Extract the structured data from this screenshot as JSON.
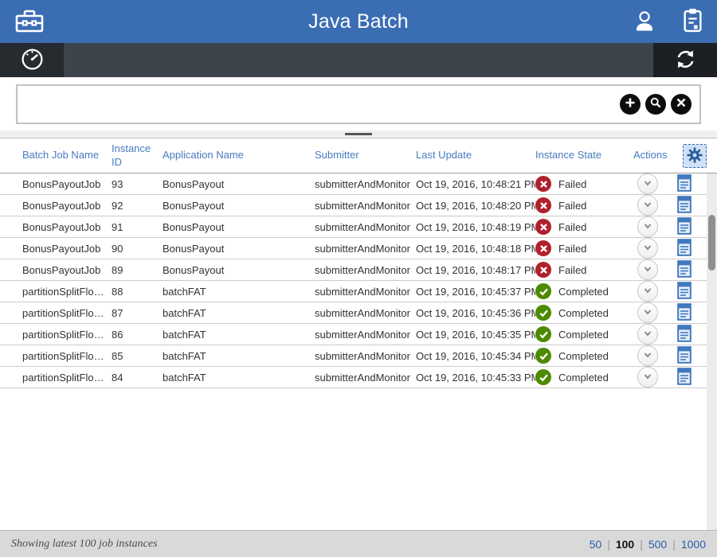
{
  "header": {
    "title": "Java Batch",
    "icons": {
      "left": "toolbox",
      "right": [
        "user",
        "clipboard-tasks"
      ]
    }
  },
  "toolbar": {
    "icons": {
      "left": "dashboard-gauge",
      "right": "refresh"
    }
  },
  "search": {
    "value": "",
    "placeholder": "",
    "buttons": {
      "add": "plus",
      "search": "magnifier",
      "clear": "x"
    }
  },
  "table": {
    "columns": [
      "Batch Job Name",
      "Instance ID",
      "Application Name",
      "Submitter",
      "Last Update",
      "Instance State",
      "Actions"
    ],
    "settings_icon": "gear",
    "rows": [
      {
        "name": "BonusPayoutJob",
        "id": "93",
        "app": "BonusPayout",
        "submitter": "submitterAndMonitor",
        "last_update": "Oct 19, 2016, 10:48:21 PM",
        "state": "Failed"
      },
      {
        "name": "BonusPayoutJob",
        "id": "92",
        "app": "BonusPayout",
        "submitter": "submitterAndMonitor",
        "last_update": "Oct 19, 2016, 10:48:20 PM",
        "state": "Failed"
      },
      {
        "name": "BonusPayoutJob",
        "id": "91",
        "app": "BonusPayout",
        "submitter": "submitterAndMonitor",
        "last_update": "Oct 19, 2016, 10:48:19 PM",
        "state": "Failed"
      },
      {
        "name": "BonusPayoutJob",
        "id": "90",
        "app": "BonusPayout",
        "submitter": "submitterAndMonitor",
        "last_update": "Oct 19, 2016, 10:48:18 PM",
        "state": "Failed"
      },
      {
        "name": "BonusPayoutJob",
        "id": "89",
        "app": "BonusPayout",
        "submitter": "submitterAndMonitor",
        "last_update": "Oct 19, 2016, 10:48:17 PM",
        "state": "Failed"
      },
      {
        "name": "partitionSplitFlo…",
        "id": "88",
        "app": "batchFAT",
        "submitter": "submitterAndMonitor",
        "last_update": "Oct 19, 2016, 10:45:37 PM",
        "state": "Completed"
      },
      {
        "name": "partitionSplitFlo…",
        "id": "87",
        "app": "batchFAT",
        "submitter": "submitterAndMonitor",
        "last_update": "Oct 19, 2016, 10:45:36 PM",
        "state": "Completed"
      },
      {
        "name": "partitionSplitFlo…",
        "id": "86",
        "app": "batchFAT",
        "submitter": "submitterAndMonitor",
        "last_update": "Oct 19, 2016, 10:45:35 PM",
        "state": "Completed"
      },
      {
        "name": "partitionSplitFlo…",
        "id": "85",
        "app": "batchFAT",
        "submitter": "submitterAndMonitor",
        "last_update": "Oct 19, 2016, 10:45:34 PM",
        "state": "Completed"
      },
      {
        "name": "partitionSplitFlo…",
        "id": "84",
        "app": "batchFAT",
        "submitter": "submitterAndMonitor",
        "last_update": "Oct 19, 2016, 10:45:33 PM",
        "state": "Completed"
      }
    ],
    "row_action_icons": [
      "chevron-down",
      "view-log"
    ]
  },
  "footer": {
    "status": "Showing latest 100 job instances",
    "page_sizes": [
      "50",
      "100",
      "500",
      "1000"
    ],
    "selected_page_size": "100"
  },
  "colors": {
    "header_bg": "#3b6db3",
    "toolbar_bg": "#3d444b",
    "failed_red": "#b0202c",
    "completed_green": "#4c8a00",
    "link_blue": "#2a5fa5",
    "column_header_blue": "#477bc0",
    "icon_blue": "#4178be"
  }
}
